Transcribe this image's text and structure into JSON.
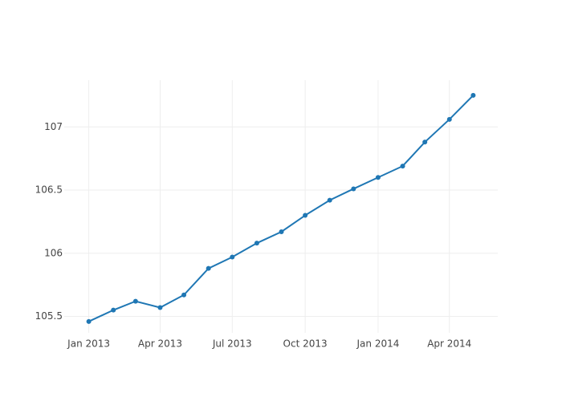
{
  "chart_data": {
    "type": "line",
    "x": [
      "2013-01",
      "2013-02",
      "2013-03",
      "2013-04",
      "2013-05",
      "2013-06",
      "2013-07",
      "2013-08",
      "2013-09",
      "2013-10",
      "2013-11",
      "2013-12",
      "2014-01",
      "2014-02",
      "2014-03",
      "2014-04",
      "2014-05"
    ],
    "series": [
      {
        "color": "#1f77b4",
        "values": [
          105.46,
          105.55,
          105.62,
          105.57,
          105.67,
          105.88,
          105.97,
          106.08,
          106.17,
          106.3,
          106.42,
          106.51,
          106.6,
          106.69,
          106.88,
          107.06,
          107.25
        ]
      }
    ],
    "xlim": [
      "2012-12-01",
      "2014-06-01"
    ],
    "xticks": [
      {
        "value": "2013-01",
        "label": "Jan 2013"
      },
      {
        "value": "2013-04",
        "label": "Apr 2013"
      },
      {
        "value": "2013-07",
        "label": "Jul 2013"
      },
      {
        "value": "2013-10",
        "label": "Oct 2013"
      },
      {
        "value": "2014-01",
        "label": "Jan 2014"
      },
      {
        "value": "2014-04",
        "label": "Apr 2014"
      }
    ],
    "ylim": [
      105.37,
      107.37
    ],
    "yticks": [
      105.5,
      106,
      106.5,
      107
    ],
    "grid": true
  }
}
